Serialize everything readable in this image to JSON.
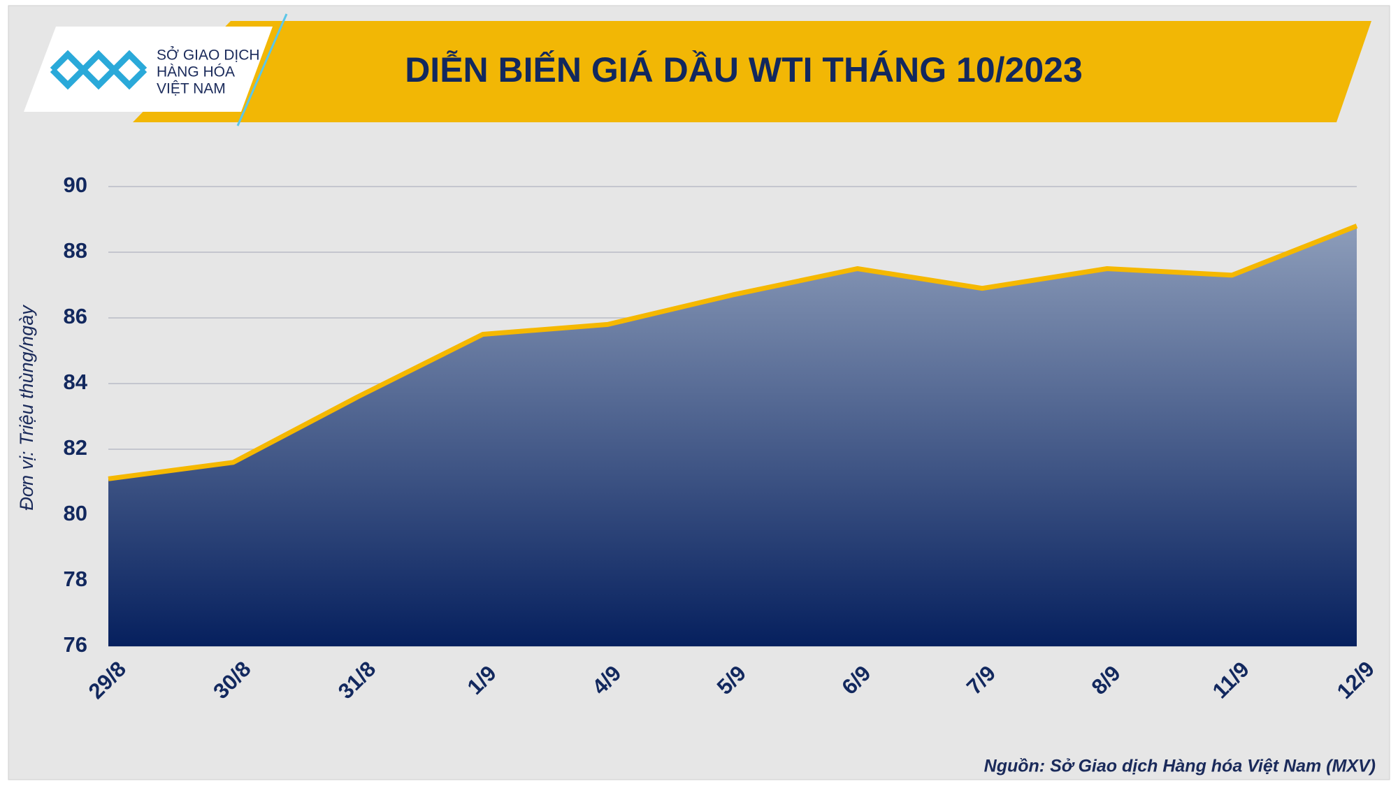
{
  "logo": {
    "lines": [
      "SỞ GIAO DỊCH",
      "HÀNG HÓA",
      "VIỆT NAM"
    ]
  },
  "chart_data": {
    "type": "area",
    "title": "DIỄN BIẾN GIÁ DẦU WTI THÁNG 10/2023",
    "y_label": "Đơn vị: Triệu thùng/ngày",
    "source": "Nguồn: Sở Giao dịch Hàng hóa Việt Nam (MXV)",
    "categories": [
      "29/8",
      "30/8",
      "31/8",
      "1/9",
      "4/9",
      "5/9",
      "6/9",
      "7/9",
      "8/9",
      "11/9",
      "12/9"
    ],
    "values": [
      81.1,
      81.6,
      83.6,
      85.5,
      85.8,
      86.7,
      87.5,
      86.9,
      87.5,
      87.3,
      88.8
    ],
    "color": "#f5b800",
    "ylim": [
      76,
      90
    ],
    "yticks": [
      76,
      78,
      80,
      82,
      84,
      86,
      88,
      90
    ],
    "grid": true
  }
}
